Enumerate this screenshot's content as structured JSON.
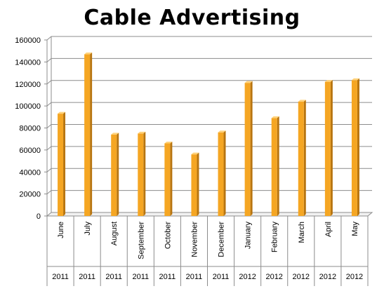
{
  "chart_data": {
    "type": "bar",
    "title": "Cable Advertising",
    "categories": [
      "June",
      "July",
      "August",
      "September",
      "October",
      "November",
      "December",
      "January",
      "February",
      "March",
      "April",
      "May"
    ],
    "years": [
      "2011",
      "2011",
      "2011",
      "2011",
      "2011",
      "2011",
      "2011",
      "2012",
      "2012",
      "2012",
      "2012",
      "2012"
    ],
    "values": [
      93000,
      147000,
      74000,
      75000,
      66000,
      56000,
      76000,
      121000,
      89000,
      104000,
      122000,
      123500
    ],
    "yticks": [
      "0",
      "20000",
      "40000",
      "60000",
      "80000",
      "100000",
      "120000",
      "140000",
      "160000"
    ],
    "ylim": [
      0,
      160000
    ],
    "grid": true,
    "colors": {
      "bar_front": "#f5a623",
      "bar_side": "#b87510",
      "bar_top": "#ffd27a",
      "grid": "#8c8c8c"
    }
  }
}
